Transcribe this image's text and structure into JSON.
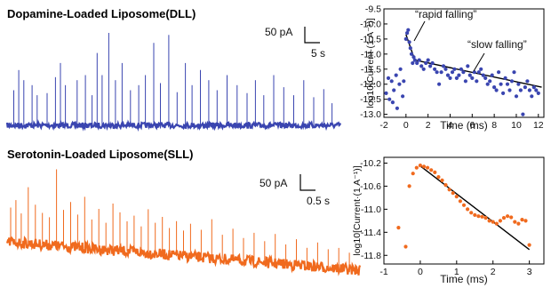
{
  "colors": {
    "dll": "#3a45b0",
    "sll": "#f06a1e",
    "fit": "#000000",
    "axis": "#000000"
  },
  "traces": [
    {
      "title": "Dopamine-Loaded Liposome(DLL)",
      "color": "#3a45b0",
      "scalebar": {
        "current": "50 pA",
        "time": "5 s"
      },
      "spikes": [
        [
          0.02,
          0.35
        ],
        [
          0.035,
          0.55
        ],
        [
          0.05,
          0.45
        ],
        [
          0.075,
          0.4
        ],
        [
          0.09,
          0.3
        ],
        [
          0.12,
          0.32
        ],
        [
          0.145,
          0.48
        ],
        [
          0.16,
          0.62
        ],
        [
          0.175,
          0.4
        ],
        [
          0.21,
          0.45
        ],
        [
          0.235,
          0.5
        ],
        [
          0.255,
          0.3
        ],
        [
          0.27,
          0.72
        ],
        [
          0.285,
          0.5
        ],
        [
          0.305,
          0.92
        ],
        [
          0.325,
          0.45
        ],
        [
          0.345,
          0.62
        ],
        [
          0.37,
          0.35
        ],
        [
          0.395,
          0.4
        ],
        [
          0.415,
          0.5
        ],
        [
          0.44,
          0.82
        ],
        [
          0.46,
          0.42
        ],
        [
          0.485,
          0.9
        ],
        [
          0.51,
          0.33
        ],
        [
          0.535,
          0.62
        ],
        [
          0.555,
          0.4
        ],
        [
          0.58,
          0.55
        ],
        [
          0.605,
          0.45
        ],
        [
          0.63,
          0.35
        ],
        [
          0.66,
          0.5
        ],
        [
          0.69,
          0.4
        ],
        [
          0.72,
          0.32
        ],
        [
          0.745,
          0.45
        ],
        [
          0.77,
          0.3
        ],
        [
          0.8,
          0.5
        ],
        [
          0.83,
          0.38
        ],
        [
          0.86,
          0.3
        ],
        [
          0.89,
          0.45
        ],
        [
          0.92,
          0.28
        ],
        [
          0.95,
          0.36
        ],
        [
          0.975,
          0.22
        ]
      ]
    },
    {
      "title": "Serotonin-Loaded Liposome(SLL)",
      "color": "#f06a1e",
      "scalebar": {
        "current": "50 pA",
        "time": "0.5 s"
      },
      "spikes": [
        [
          0.01,
          0.45
        ],
        [
          0.025,
          0.55
        ],
        [
          0.04,
          0.38
        ],
        [
          0.06,
          0.72
        ],
        [
          0.08,
          0.5
        ],
        [
          0.1,
          0.4
        ],
        [
          0.12,
          0.35
        ],
        [
          0.14,
          0.95
        ],
        [
          0.16,
          0.45
        ],
        [
          0.18,
          0.55
        ],
        [
          0.2,
          0.4
        ],
        [
          0.22,
          0.62
        ],
        [
          0.24,
          0.35
        ],
        [
          0.26,
          0.48
        ],
        [
          0.28,
          0.32
        ],
        [
          0.3,
          0.55
        ],
        [
          0.32,
          0.45
        ],
        [
          0.34,
          0.35
        ],
        [
          0.36,
          0.42
        ],
        [
          0.38,
          0.3
        ],
        [
          0.4,
          0.5
        ],
        [
          0.42,
          0.35
        ],
        [
          0.44,
          0.42
        ],
        [
          0.46,
          0.3
        ],
        [
          0.48,
          0.38
        ],
        [
          0.5,
          0.28
        ],
        [
          0.52,
          0.36
        ],
        [
          0.55,
          0.3
        ],
        [
          0.58,
          0.42
        ],
        [
          0.61,
          0.26
        ],
        [
          0.64,
          0.33
        ],
        [
          0.67,
          0.24
        ],
        [
          0.7,
          0.3
        ],
        [
          0.73,
          0.22
        ],
        [
          0.76,
          0.3
        ],
        [
          0.79,
          0.2
        ],
        [
          0.82,
          0.26
        ],
        [
          0.85,
          0.18
        ],
        [
          0.88,
          0.24
        ],
        [
          0.91,
          0.18
        ],
        [
          0.94,
          0.2
        ],
        [
          0.97,
          0.16
        ]
      ]
    }
  ],
  "chart_data": [
    {
      "type": "scatter",
      "color": "#3a45b0",
      "xlabel": "Time (ms)",
      "ylabel": "log10[Current·(1 A⁻¹)]",
      "xlim": [
        -2,
        12.5
      ],
      "ylim": [
        -13.1,
        -9.5
      ],
      "xticks": [
        -2,
        0,
        2,
        4,
        6,
        8,
        10,
        12
      ],
      "yticks": [
        -9.5,
        -10.0,
        -10.5,
        -11.0,
        -11.5,
        -12.0,
        -12.5,
        -13.0
      ],
      "annotations": [
        "“rapid falling”",
        "“slow falling”"
      ],
      "fits": [
        {
          "x": [
            0.0,
            0.8
          ],
          "y": [
            -10.35,
            -11.2
          ]
        },
        {
          "x": [
            0.8,
            12.3
          ],
          "y": [
            -11.2,
            -12.1
          ]
        }
      ],
      "points": {
        "x": [
          -1.8,
          -1.6,
          -1.5,
          -1.3,
          -1.2,
          -1.1,
          -0.9,
          -0.8,
          -0.6,
          -0.5,
          -0.3,
          -0.2,
          0.0,
          0.1,
          0.2,
          0.3,
          0.4,
          0.5,
          0.6,
          0.7,
          0.8,
          1.0,
          1.2,
          1.4,
          1.6,
          1.8,
          2.0,
          2.2,
          2.4,
          2.6,
          2.8,
          3.0,
          3.2,
          3.4,
          3.6,
          3.8,
          4.0,
          4.2,
          4.4,
          4.6,
          4.8,
          5.0,
          5.2,
          5.4,
          5.6,
          5.8,
          6.0,
          6.2,
          6.4,
          6.6,
          6.8,
          7.0,
          7.2,
          7.4,
          7.6,
          7.8,
          8.0,
          8.2,
          8.4,
          8.6,
          8.8,
          9.0,
          9.2,
          9.4,
          9.6,
          9.8,
          10.0,
          10.2,
          10.4,
          10.6,
          10.8,
          11.0,
          11.2,
          11.4,
          11.6,
          11.8,
          12.0
        ],
        "y": [
          -12.3,
          -11.8,
          -12.5,
          -11.9,
          -12.6,
          -12.2,
          -11.7,
          -12.8,
          -12.0,
          -11.5,
          -12.4,
          -11.9,
          -10.5,
          -10.3,
          -10.2,
          -10.6,
          -10.8,
          -11.0,
          -11.3,
          -11.1,
          -11.2,
          -11.3,
          -11.2,
          -11.4,
          -11.5,
          -11.3,
          -11.2,
          -11.4,
          -11.3,
          -11.5,
          -11.6,
          -12.0,
          -11.6,
          -11.4,
          -11.5,
          -11.7,
          -11.8,
          -11.6,
          -11.5,
          -11.8,
          -11.7,
          -11.5,
          -11.6,
          -11.9,
          -11.4,
          -11.7,
          -11.8,
          -11.6,
          -11.9,
          -11.6,
          -11.5,
          -11.7,
          -11.8,
          -12.0,
          -11.9,
          -11.7,
          -12.1,
          -12.2,
          -11.6,
          -12.0,
          -12.3,
          -11.8,
          -12.0,
          -12.2,
          -11.9,
          -11.6,
          -12.4,
          -12.0,
          -12.2,
          -13.0,
          -12.1,
          -11.9,
          -12.2,
          -12.4,
          -12.1,
          -12.2,
          -12.3
        ]
      }
    },
    {
      "type": "scatter",
      "color": "#f06a1e",
      "xlabel": "Time (ms)",
      "ylabel": "log10[Current·(1 A⁻¹)]",
      "xlim": [
        -1,
        3.4
      ],
      "ylim": [
        -11.95,
        -10.1
      ],
      "xticks": [
        -1,
        0,
        1,
        2,
        3
      ],
      "yticks": [
        -10.2,
        -10.6,
        -11.0,
        -11.4,
        -11.8
      ],
      "annotations": [],
      "fits": [
        {
          "x": [
            0.0,
            3.0
          ],
          "y": [
            -10.25,
            -11.7
          ]
        }
      ],
      "points": {
        "x": [
          -0.6,
          -0.4,
          -0.3,
          -0.2,
          -0.1,
          0.0,
          0.1,
          0.2,
          0.3,
          0.4,
          0.5,
          0.6,
          0.7,
          0.8,
          0.9,
          1.0,
          1.1,
          1.2,
          1.3,
          1.4,
          1.5,
          1.6,
          1.7,
          1.8,
          1.9,
          2.0,
          2.1,
          2.2,
          2.3,
          2.4,
          2.5,
          2.6,
          2.7,
          2.8,
          2.9,
          3.0
        ],
        "y": [
          -11.32,
          -11.65,
          -10.6,
          -10.38,
          -10.28,
          -10.24,
          -10.26,
          -10.28,
          -10.32,
          -10.36,
          -10.44,
          -10.5,
          -10.58,
          -10.66,
          -10.72,
          -10.78,
          -10.86,
          -10.93,
          -11.0,
          -11.06,
          -11.1,
          -11.12,
          -11.13,
          -11.15,
          -11.2,
          -11.22,
          -11.25,
          -11.2,
          -11.15,
          -11.12,
          -11.14,
          -11.22,
          -11.25,
          -11.18,
          -11.2,
          -11.62
        ]
      }
    }
  ]
}
